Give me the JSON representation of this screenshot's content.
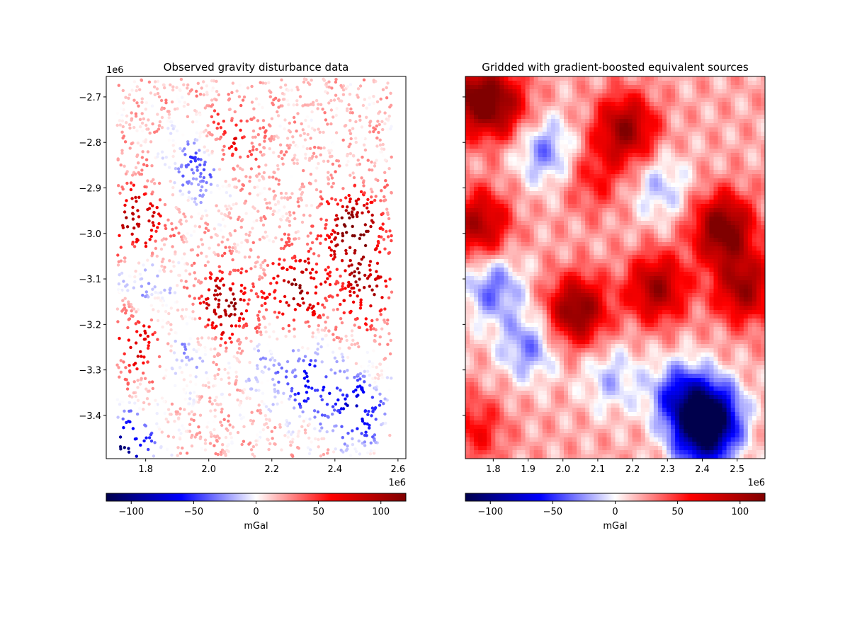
{
  "chart_data": [
    {
      "type": "scatter",
      "title": "Observed gravity disturbance data",
      "xlabel": "",
      "ylabel": "",
      "x_offset_label": "1e6",
      "y_offset_label": "1e6",
      "xlim": [
        1.675,
        2.625
      ],
      "ylim": [
        -3.495,
        -2.655
      ],
      "xticks": [
        1.8,
        2.0,
        2.2,
        2.4,
        2.6
      ],
      "xtick_labels": [
        "1.8",
        "2.0",
        "2.2",
        "2.4",
        "2.6"
      ],
      "yticks": [
        -2.7,
        -2.8,
        -2.9,
        -3.0,
        -3.1,
        -3.2,
        -3.3,
        -3.4
      ],
      "ytick_labels": [
        "−2.7",
        "−2.8",
        "−2.9",
        "−3.0",
        "−3.1",
        "−3.2",
        "−3.3",
        "−3.4"
      ],
      "colormap": "seismic",
      "colorbar": {
        "label": "mGal",
        "range": [
          -120,
          120
        ],
        "ticks": [
          -100,
          -50,
          0,
          50,
          100
        ],
        "tick_labels": [
          "−100",
          "−50",
          "0",
          "50",
          "100"
        ]
      },
      "anomalies_mgal": [
        {
          "x": 1.97,
          "y": -2.85,
          "value": -70
        },
        {
          "x": 2.06,
          "y": -2.8,
          "value": 55
        },
        {
          "x": 1.77,
          "y": -2.97,
          "value": 85
        },
        {
          "x": 2.05,
          "y": -3.16,
          "value": 95
        },
        {
          "x": 2.28,
          "y": -3.12,
          "value": 90
        },
        {
          "x": 2.5,
          "y": -3.12,
          "value": 80
        },
        {
          "x": 2.46,
          "y": -2.99,
          "value": 115
        },
        {
          "x": 1.8,
          "y": -3.12,
          "value": -45
        },
        {
          "x": 1.93,
          "y": -3.26,
          "value": -40
        },
        {
          "x": 2.32,
          "y": -3.33,
          "value": -75
        },
        {
          "x": 2.47,
          "y": -3.39,
          "value": -95
        },
        {
          "x": 2.18,
          "y": -3.29,
          "value": -30
        },
        {
          "x": 1.74,
          "y": -3.47,
          "value": -110
        },
        {
          "x": 1.78,
          "y": -3.24,
          "value": 65
        }
      ]
    },
    {
      "type": "heatmap",
      "title": "Gridded with gradient-boosted equivalent sources",
      "xlabel": "",
      "ylabel": "",
      "x_offset_label": "1e6",
      "xlim": [
        1.72,
        2.58
      ],
      "ylim": [
        -3.495,
        -2.655
      ],
      "xticks": [
        1.8,
        1.9,
        2.0,
        2.1,
        2.2,
        2.3,
        2.4,
        2.5
      ],
      "xtick_labels": [
        "1.8",
        "1.9",
        "2.0",
        "2.1",
        "2.2",
        "2.3",
        "2.4",
        "2.5"
      ],
      "yticks": [
        -2.7,
        -2.8,
        -2.9,
        -3.0,
        -3.1,
        -3.2,
        -3.3,
        -3.4
      ],
      "colormap": "seismic",
      "colorbar": {
        "label": "mGal",
        "range": [
          -120,
          120
        ],
        "ticks": [
          -100,
          -50,
          0,
          50,
          100
        ],
        "tick_labels": [
          "−100",
          "−50",
          "0",
          "50",
          "100"
        ]
      },
      "anomalies_mgal": [
        {
          "x": 1.74,
          "y": -2.7,
          "value": 80
        },
        {
          "x": 1.82,
          "y": -2.72,
          "value": 70
        },
        {
          "x": 1.95,
          "y": -2.82,
          "value": -50
        },
        {
          "x": 2.18,
          "y": -2.77,
          "value": 90
        },
        {
          "x": 1.76,
          "y": -2.98,
          "value": 80
        },
        {
          "x": 2.04,
          "y": -3.17,
          "value": 100
        },
        {
          "x": 2.27,
          "y": -3.12,
          "value": 85
        },
        {
          "x": 2.52,
          "y": -3.12,
          "value": 85
        },
        {
          "x": 2.46,
          "y": -2.99,
          "value": 110
        },
        {
          "x": 1.8,
          "y": -3.12,
          "value": -55
        },
        {
          "x": 1.9,
          "y": -3.25,
          "value": -50
        },
        {
          "x": 2.34,
          "y": -3.36,
          "value": -80
        },
        {
          "x": 2.43,
          "y": -3.4,
          "value": -105
        },
        {
          "x": 2.14,
          "y": -3.32,
          "value": -35
        },
        {
          "x": 2.09,
          "y": -2.88,
          "value": 35
        },
        {
          "x": 2.28,
          "y": -2.9,
          "value": -35
        },
        {
          "x": 2.4,
          "y": -3.45,
          "value": -90
        },
        {
          "x": 1.75,
          "y": -3.43,
          "value": 40
        }
      ]
    }
  ]
}
